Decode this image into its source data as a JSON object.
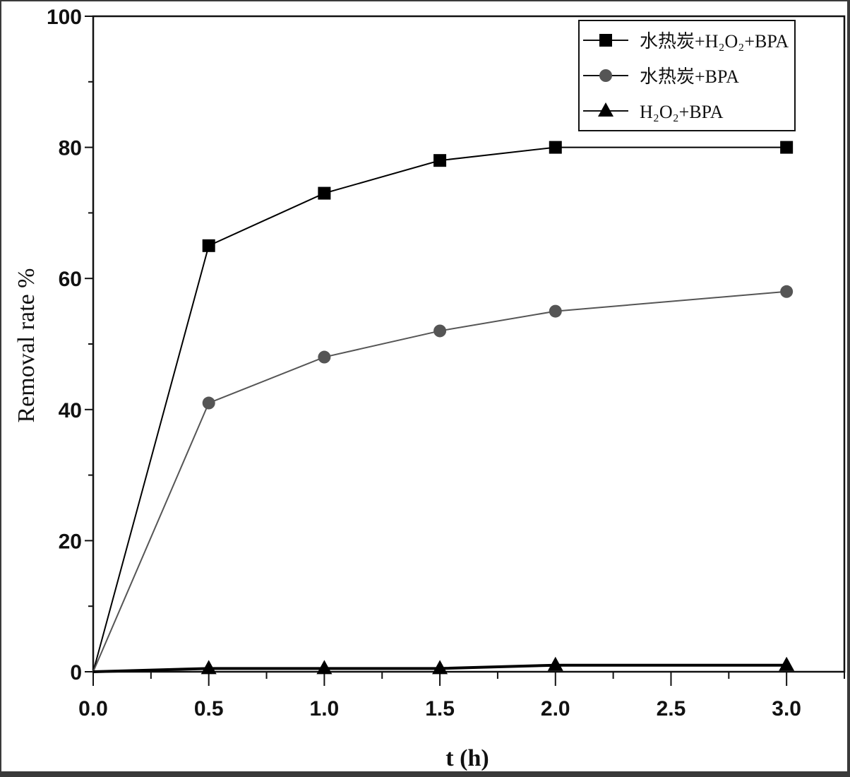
{
  "chart_data": {
    "type": "line",
    "title": "",
    "xlabel": "t (h)",
    "ylabel": "Removal rate %",
    "xlim": [
      0,
      3.25
    ],
    "ylim": [
      0,
      100
    ],
    "xticks": [
      "0.0",
      "0.5",
      "1.0",
      "1.5",
      "2.0",
      "2.5",
      "3.0"
    ],
    "yticks": [
      "0",
      "20",
      "40",
      "60",
      "80",
      "100"
    ],
    "grid": false,
    "legend_position": "top-right",
    "x": [
      0,
      0.5,
      1.0,
      1.5,
      2.0,
      3.0
    ],
    "series": [
      {
        "name": "水热炭+H₂O₂+BPA",
        "marker": "square",
        "color": "#000000",
        "values": [
          0,
          65,
          73,
          78,
          80,
          80
        ]
      },
      {
        "name": "水热炭+BPA",
        "marker": "circle",
        "color": "#555555",
        "values": [
          0,
          41,
          48,
          52,
          55,
          58
        ]
      },
      {
        "name": "H₂O₂+BPA",
        "marker": "triangle",
        "color": "#000000",
        "values": [
          0,
          0.5,
          0.5,
          0.5,
          1,
          1
        ]
      }
    ]
  }
}
